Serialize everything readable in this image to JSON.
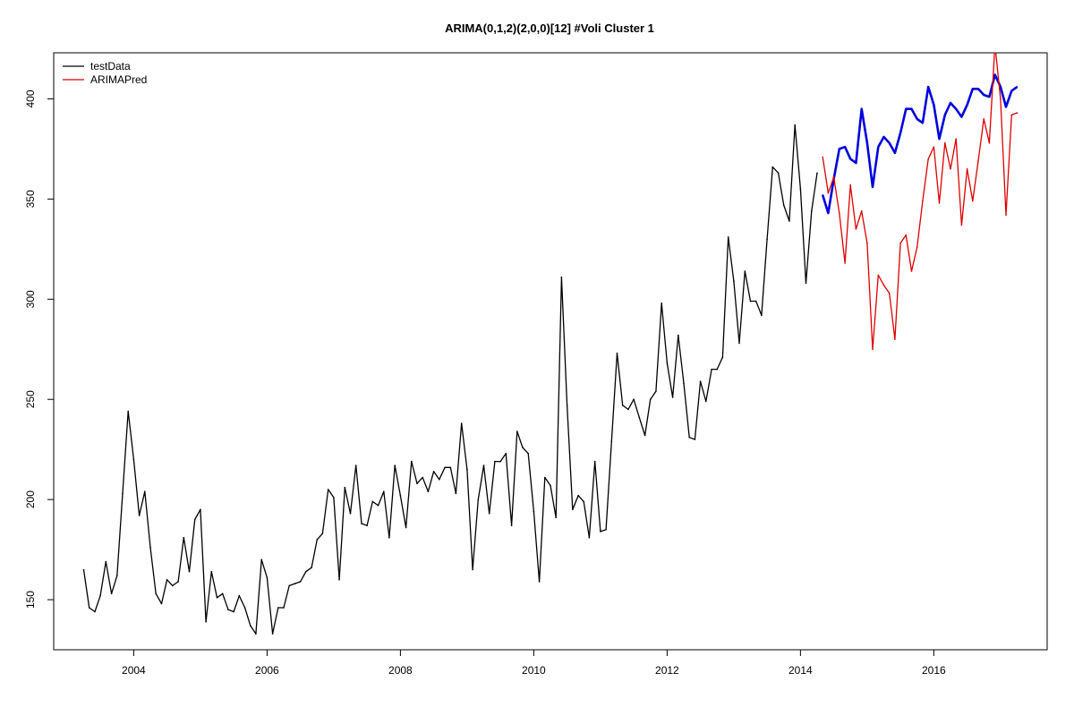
{
  "chart_data": {
    "type": "line",
    "title": "ARIMA(0,1,2)(2,0,0)[12] #Voli Cluster  1",
    "xlabel": "",
    "ylabel": "",
    "xlim": [
      2002.8,
      2017.7
    ],
    "ylim": [
      125,
      423
    ],
    "x_ticks": [
      2004,
      2006,
      2008,
      2010,
      2012,
      2014,
      2016
    ],
    "x_tick_labels": [
      "2004",
      "2006",
      "2008",
      "2010",
      "2012",
      "2014",
      "2016"
    ],
    "y_ticks": [
      150,
      200,
      250,
      300,
      350,
      400
    ],
    "y_tick_labels": [
      "150",
      "200",
      "250",
      "300",
      "350",
      "400"
    ],
    "grid": false,
    "legend": {
      "position": "top-left",
      "entries": [
        {
          "label": "testData",
          "color": "#000000"
        },
        {
          "label": "ARIMAPred",
          "color": "#dd0000"
        }
      ]
    },
    "series": [
      {
        "color": "#000000",
        "line_width": 1.3,
        "x": [
          2003.25,
          2003.333,
          2003.417,
          2003.5,
          2003.583,
          2003.667,
          2003.75,
          2003.833,
          2003.917,
          2004.0,
          2004.083,
          2004.167,
          2004.25,
          2004.333,
          2004.417,
          2004.5,
          2004.583,
          2004.667,
          2004.75,
          2004.833,
          2004.917,
          2005.0,
          2005.083,
          2005.167,
          2005.25,
          2005.333,
          2005.417,
          2005.5,
          2005.583,
          2005.667,
          2005.75,
          2005.833,
          2005.917,
          2006.0,
          2006.083,
          2006.167,
          2006.25,
          2006.333,
          2006.417,
          2006.5,
          2006.583,
          2006.667,
          2006.75,
          2006.833,
          2006.917,
          2007.0,
          2007.083,
          2007.167,
          2007.25,
          2007.333,
          2007.417,
          2007.5,
          2007.583,
          2007.667,
          2007.75,
          2007.833,
          2007.917,
          2008.0,
          2008.083,
          2008.167,
          2008.25,
          2008.333,
          2008.417,
          2008.5,
          2008.583,
          2008.667,
          2008.75,
          2008.833,
          2008.917,
          2009.0,
          2009.083,
          2009.167,
          2009.25,
          2009.333,
          2009.417,
          2009.5,
          2009.583,
          2009.667,
          2009.75,
          2009.833,
          2009.917,
          2010.0,
          2010.083,
          2010.167,
          2010.25,
          2010.333,
          2010.417,
          2010.5,
          2010.583,
          2010.667,
          2010.75,
          2010.833,
          2010.917,
          2011.0,
          2011.083,
          2011.167,
          2011.25,
          2011.333,
          2011.417,
          2011.5,
          2011.583,
          2011.667,
          2011.75,
          2011.833,
          2011.917,
          2012.0,
          2012.083,
          2012.167,
          2012.25,
          2012.333,
          2012.417,
          2012.5,
          2012.583,
          2012.667,
          2012.75,
          2012.833,
          2012.917,
          2013.0,
          2013.083,
          2013.167,
          2013.25,
          2013.333,
          2013.417,
          2013.5,
          2013.583,
          2013.667,
          2013.75,
          2013.833,
          2013.917,
          2014.0,
          2014.083,
          2014.167,
          2014.25
        ],
        "y": [
          165,
          146,
          144,
          152,
          169,
          153,
          162,
          203,
          244,
          220,
          192,
          204,
          176,
          153,
          148,
          160,
          157,
          159,
          181,
          164,
          190,
          195,
          139,
          164,
          151,
          153,
          145,
          144,
          152,
          146,
          137,
          133,
          170,
          161,
          133,
          146,
          146,
          157,
          158,
          159,
          164,
          166,
          180,
          183,
          205,
          201,
          160,
          206,
          193,
          217,
          188,
          187,
          199,
          197,
          204,
          181,
          217,
          202,
          186,
          219,
          208,
          211,
          204,
          214,
          210,
          216,
          216,
          203,
          238,
          215,
          165,
          200,
          217,
          193,
          219,
          219,
          223,
          187,
          234,
          226,
          223,
          194,
          159,
          211,
          207,
          191,
          311,
          247,
          195,
          202,
          199,
          181,
          219,
          184,
          185,
          229,
          273,
          247,
          245,
          250,
          241,
          232,
          250,
          254,
          298,
          268,
          251,
          282,
          258,
          231,
          230,
          259,
          249,
          265,
          265,
          271,
          331,
          309,
          278,
          314,
          299,
          299,
          292,
          330,
          366,
          363,
          347,
          339,
          387,
          355,
          308,
          344,
          363
        ]
      },
      {
        "color": "#0000dd",
        "line_width": 2.6,
        "x": [
          2014.333,
          2014.417,
          2014.5,
          2014.583,
          2014.667,
          2014.75,
          2014.833,
          2014.917,
          2015.0,
          2015.083,
          2015.167,
          2015.25,
          2015.333,
          2015.417,
          2015.5,
          2015.583,
          2015.667,
          2015.75,
          2015.833,
          2015.917,
          2016.0,
          2016.083,
          2016.167,
          2016.25,
          2016.333,
          2016.417,
          2016.5,
          2016.583,
          2016.667,
          2016.75,
          2016.833,
          2016.917,
          2017.0,
          2017.083,
          2017.167,
          2017.25
        ],
        "y": [
          352,
          343,
          360,
          375,
          376,
          370,
          368,
          395,
          378,
          356,
          376,
          381,
          378,
          373,
          383,
          395,
          395,
          390,
          388,
          406,
          397,
          380,
          392,
          398,
          395,
          391,
          397,
          405,
          405,
          402,
          401,
          412,
          406,
          396,
          404,
          406
        ]
      },
      {
        "name": "ARIMAPred",
        "color": "#dd0000",
        "line_width": 1.3,
        "x": [
          2014.333,
          2014.417,
          2014.5,
          2014.583,
          2014.667,
          2014.75,
          2014.833,
          2014.917,
          2015.0,
          2015.083,
          2015.167,
          2015.25,
          2015.333,
          2015.417,
          2015.5,
          2015.583,
          2015.667,
          2015.75,
          2015.833,
          2015.917,
          2016.0,
          2016.083,
          2016.167,
          2016.25,
          2016.333,
          2016.417,
          2016.5,
          2016.583,
          2016.667,
          2016.75,
          2016.833,
          2016.917,
          2017.0,
          2017.083,
          2017.167,
          2017.25
        ],
        "y": [
          371,
          353,
          361,
          343,
          318,
          357,
          335,
          344,
          328,
          275,
          312,
          307,
          303,
          280,
          328,
          332,
          314,
          326,
          349,
          370,
          376,
          348,
          378,
          365,
          380,
          337,
          365,
          349,
          369,
          390,
          378,
          427,
          400,
          342,
          392,
          393
        ]
      }
    ]
  }
}
